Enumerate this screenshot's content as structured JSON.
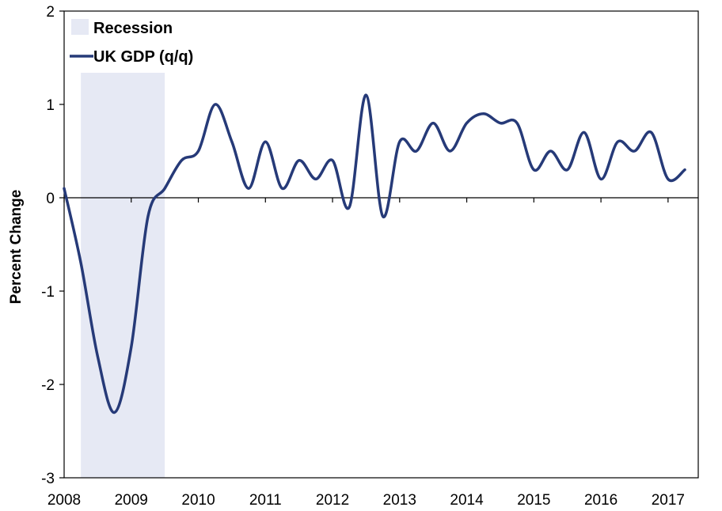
{
  "chart_data": {
    "type": "line",
    "title": "",
    "xlabel": "",
    "ylabel": "Percent Change",
    "ylim": [
      -3,
      2
    ],
    "yticks": [
      "-3",
      "-2",
      "-1",
      "0",
      "1",
      "2"
    ],
    "xlim": [
      2008,
      2017.45
    ],
    "xticks": [
      "2008",
      "2009",
      "2010",
      "2011",
      "2012",
      "2013",
      "2014",
      "2015",
      "2016",
      "2017"
    ],
    "grid": false,
    "legend_position": "top-left",
    "recession": {
      "name": "Recession",
      "start": 2008.25,
      "end": 2009.5,
      "color": "#e6e9f4"
    },
    "series": [
      {
        "name": "UK GDP (q/q)",
        "color": "#263a78",
        "x": [
          2008.0,
          2008.25,
          2008.5,
          2008.75,
          2009.0,
          2009.25,
          2009.5,
          2009.75,
          2010.0,
          2010.25,
          2010.5,
          2010.75,
          2011.0,
          2011.25,
          2011.5,
          2011.75,
          2012.0,
          2012.25,
          2012.5,
          2012.75,
          2013.0,
          2013.25,
          2013.5,
          2013.75,
          2014.0,
          2014.25,
          2014.5,
          2014.75,
          2015.0,
          2015.25,
          2015.5,
          2015.75,
          2016.0,
          2016.25,
          2016.5,
          2016.75,
          2017.0,
          2017.25
        ],
        "values": [
          0.1,
          -0.7,
          -1.7,
          -2.3,
          -1.6,
          -0.2,
          0.1,
          0.4,
          0.5,
          1.0,
          0.6,
          0.1,
          0.6,
          0.1,
          0.4,
          0.2,
          0.4,
          -0.1,
          1.1,
          -0.2,
          0.6,
          0.5,
          0.8,
          0.5,
          0.8,
          0.9,
          0.8,
          0.8,
          0.3,
          0.5,
          0.3,
          0.7,
          0.2,
          0.6,
          0.5,
          0.7,
          0.2,
          0.3
        ]
      }
    ]
  }
}
